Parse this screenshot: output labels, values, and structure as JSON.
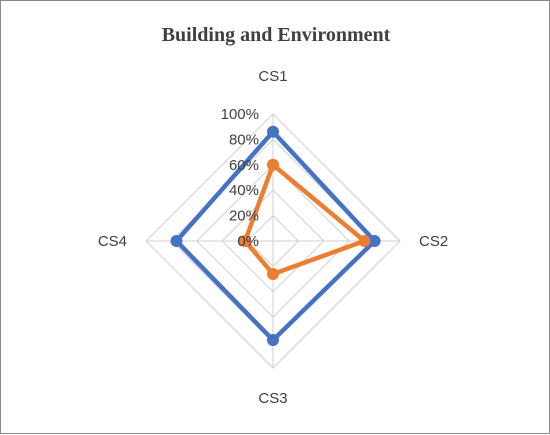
{
  "chart_data": {
    "type": "radar",
    "title": "Building and Environment",
    "categories": [
      "CS1",
      "CS2",
      "CS3",
      "CS4"
    ],
    "radial_ticks": [
      "0%",
      "20%",
      "40%",
      "60%",
      "80%",
      "100%"
    ],
    "rlim": [
      0,
      100
    ],
    "series": [
      {
        "color": "#4472C4",
        "values": [
          86,
          80,
          78,
          76
        ]
      },
      {
        "color": "#ED7D31",
        "values": [
          60,
          72,
          26,
          22
        ]
      }
    ],
    "grid": true,
    "legend": "none"
  }
}
